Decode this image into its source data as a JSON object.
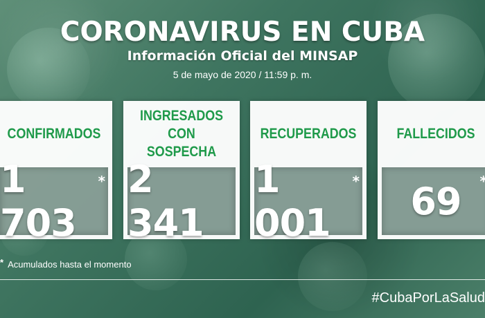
{
  "header": {
    "title": "CORONAVIRUS EN CUBA",
    "subtitle": "Información Oficial del MINSAP",
    "date": "5 de mayo de 2020 / 11:59 p. m."
  },
  "cards": [
    {
      "label": "CONFIRMADOS",
      "value": "1 703",
      "asterisk": "*"
    },
    {
      "label": "INGRESADOS CON SOSPECHA",
      "value": "2 341",
      "asterisk": ""
    },
    {
      "label": "RECUPERADOS",
      "value": "1 001",
      "asterisk": "*"
    },
    {
      "label": "FALLECIDOS",
      "value": "69",
      "asterisk": "*"
    }
  ],
  "footnote": {
    "star": "*",
    "text": "Acumulados hasta el momento"
  },
  "hashtag": "#CubaPorLaSalud",
  "colors": {
    "label_green": "#1f9a4a",
    "background": "#3f7560"
  }
}
